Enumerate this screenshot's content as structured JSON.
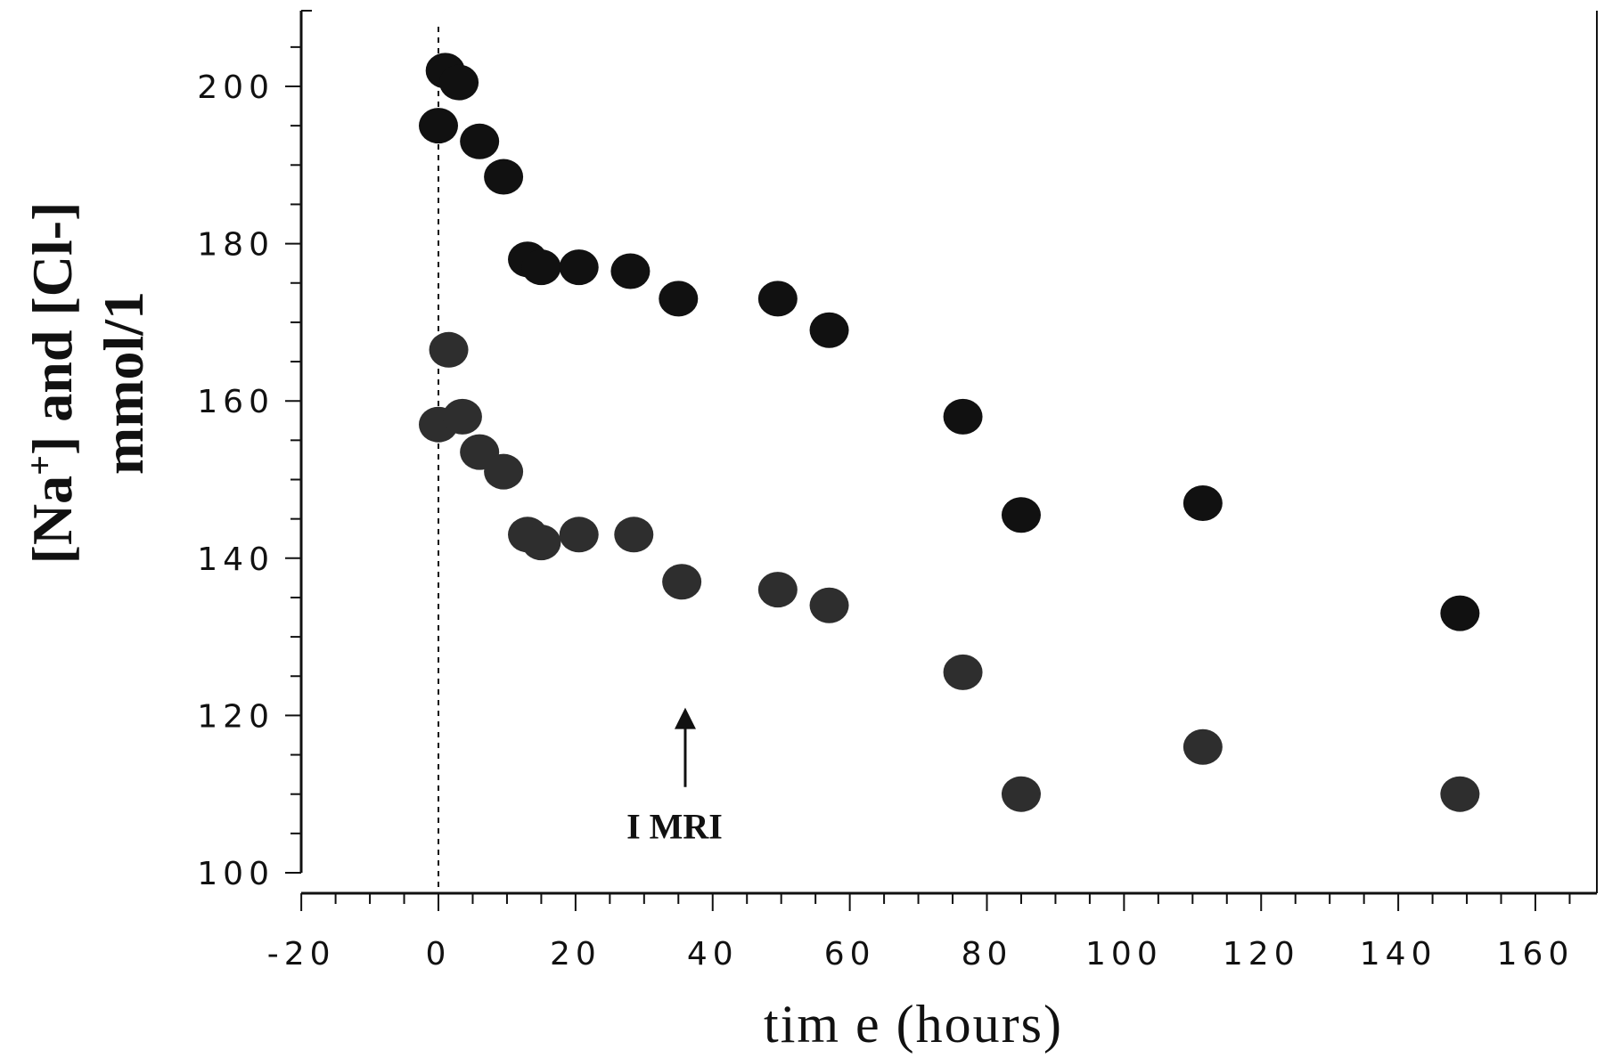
{
  "chart_data": {
    "type": "scatter",
    "title": "",
    "xlabel": "tim e (hours)",
    "ylabel_line1_pre": "[Na",
    "ylabel_line1_sup": "+",
    "ylabel_line1_post": "] and [Cl-]",
    "ylabel_line2": "mmol/1",
    "xlim": [
      -20,
      170
    ],
    "ylim": [
      100,
      210
    ],
    "x_ticks": [
      -20,
      0,
      20,
      40,
      60,
      80,
      100,
      120,
      140,
      160
    ],
    "x_tick_labels": [
      "-20",
      "0",
      "20",
      "40",
      "60",
      "80",
      "100",
      "120",
      "140",
      "160"
    ],
    "y_ticks": [
      100,
      120,
      140,
      160,
      180,
      200
    ],
    "y_tick_labels": [
      "100",
      "120",
      "140",
      "160",
      "180",
      "200"
    ],
    "grid": false,
    "vertical_reference_line_x": 0,
    "series": [
      {
        "color": "#111111",
        "points": [
          [
            1,
            202
          ],
          [
            3,
            200.5
          ],
          [
            0,
            195
          ],
          [
            6,
            193
          ],
          [
            9.5,
            188.5
          ],
          [
            13,
            178
          ],
          [
            15,
            177
          ],
          [
            20.5,
            177
          ],
          [
            28,
            176.5
          ],
          [
            35,
            173
          ],
          [
            49.5,
            173
          ],
          [
            57,
            169
          ],
          [
            76.5,
            158
          ],
          [
            85,
            145.5
          ],
          [
            111.5,
            147
          ],
          [
            149,
            133
          ]
        ]
      },
      {
        "color": "#2e2e2e",
        "points": [
          [
            1.5,
            166.5
          ],
          [
            0,
            157
          ],
          [
            3.5,
            158
          ],
          [
            6,
            153.5
          ],
          [
            9.5,
            151
          ],
          [
            13,
            143
          ],
          [
            15,
            142
          ],
          [
            20.5,
            143
          ],
          [
            28.5,
            143
          ],
          [
            35.5,
            137
          ],
          [
            49.5,
            136
          ],
          [
            57,
            134
          ],
          [
            76.5,
            125.5
          ],
          [
            85,
            110
          ],
          [
            111.5,
            116
          ],
          [
            149,
            110
          ]
        ]
      }
    ],
    "annotation": {
      "text": "I MRI",
      "arrow_x": 36,
      "arrow_y_from": 110,
      "arrow_y_to": 121
    }
  }
}
